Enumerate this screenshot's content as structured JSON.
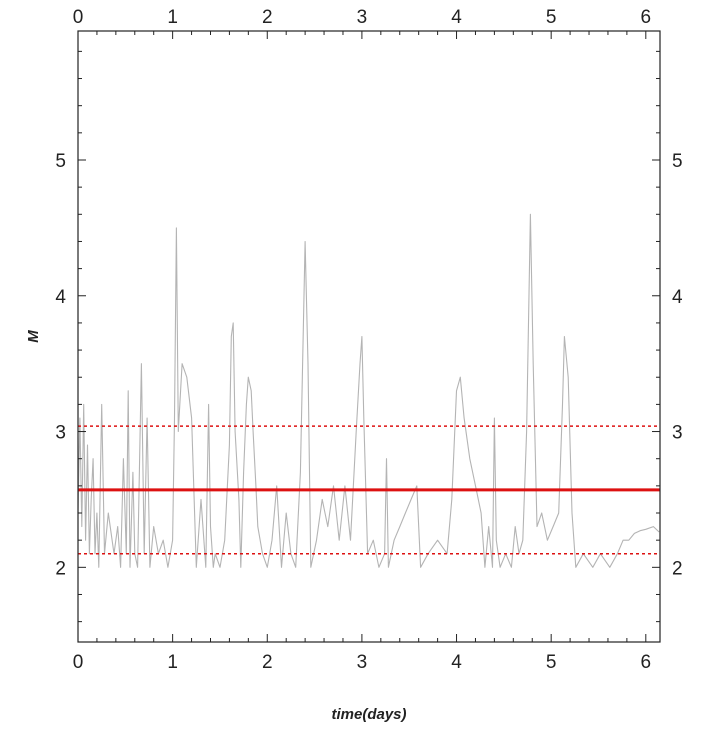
{
  "chart_data": {
    "type": "line",
    "xlabel": "time(days)",
    "ylabel": "M",
    "xlim": [
      0,
      6.15
    ],
    "ylim": [
      1.45,
      5.95
    ],
    "x_ticks": [
      0,
      1,
      2,
      3,
      4,
      5,
      6
    ],
    "y_ticks": [
      2,
      3,
      4,
      5
    ],
    "x_minor_step": 0.2,
    "y_minor_step": 0.2,
    "top_axis_labels": true,
    "right_axis_labels": true,
    "grid": false,
    "legend": "none",
    "reference_lines": [
      {
        "y": 2.57,
        "style": "solid",
        "color": "#dd1111"
      },
      {
        "y": 3.04,
        "style": "dashed",
        "color": "#dd1111"
      },
      {
        "y": 2.1,
        "style": "dashed",
        "color": "#dd1111"
      }
    ],
    "series": [
      {
        "color": "#b4b4b4",
        "points": [
          [
            0.0,
            2.4
          ],
          [
            0.02,
            3.1
          ],
          [
            0.04,
            2.3
          ],
          [
            0.06,
            3.2
          ],
          [
            0.08,
            2.2
          ],
          [
            0.1,
            2.9
          ],
          [
            0.12,
            2.1
          ],
          [
            0.14,
            2.5
          ],
          [
            0.16,
            2.8
          ],
          [
            0.18,
            2.1
          ],
          [
            0.2,
            2.4
          ],
          [
            0.22,
            2.0
          ],
          [
            0.25,
            3.2
          ],
          [
            0.28,
            2.1
          ],
          [
            0.32,
            2.4
          ],
          [
            0.38,
            2.1
          ],
          [
            0.42,
            2.3
          ],
          [
            0.45,
            2.0
          ],
          [
            0.48,
            2.8
          ],
          [
            0.51,
            2.1
          ],
          [
            0.53,
            3.3
          ],
          [
            0.55,
            2.0
          ],
          [
            0.58,
            2.7
          ],
          [
            0.6,
            2.1
          ],
          [
            0.63,
            2.0
          ],
          [
            0.67,
            3.5
          ],
          [
            0.7,
            2.1
          ],
          [
            0.73,
            3.1
          ],
          [
            0.76,
            2.0
          ],
          [
            0.8,
            2.3
          ],
          [
            0.85,
            2.1
          ],
          [
            0.9,
            2.2
          ],
          [
            0.95,
            2.0
          ],
          [
            1.0,
            2.2
          ],
          [
            1.02,
            3.1
          ],
          [
            1.04,
            4.5
          ],
          [
            1.06,
            3.0
          ],
          [
            1.1,
            3.5
          ],
          [
            1.15,
            3.4
          ],
          [
            1.2,
            3.1
          ],
          [
            1.25,
            2.0
          ],
          [
            1.3,
            2.5
          ],
          [
            1.35,
            2.0
          ],
          [
            1.38,
            3.2
          ],
          [
            1.4,
            2.3
          ],
          [
            1.43,
            2.0
          ],
          [
            1.45,
            2.1
          ],
          [
            1.5,
            2.0
          ],
          [
            1.55,
            2.2
          ],
          [
            1.6,
            2.9
          ],
          [
            1.62,
            3.7
          ],
          [
            1.64,
            3.8
          ],
          [
            1.66,
            3.0
          ],
          [
            1.7,
            2.5
          ],
          [
            1.72,
            2.0
          ],
          [
            1.75,
            2.7
          ],
          [
            1.78,
            3.2
          ],
          [
            1.8,
            3.4
          ],
          [
            1.83,
            3.3
          ],
          [
            1.85,
            3.0
          ],
          [
            1.88,
            2.6
          ],
          [
            1.9,
            2.3
          ],
          [
            1.95,
            2.1
          ],
          [
            2.0,
            2.0
          ],
          [
            2.05,
            2.2
          ],
          [
            2.1,
            2.6
          ],
          [
            2.15,
            2.0
          ],
          [
            2.2,
            2.4
          ],
          [
            2.25,
            2.1
          ],
          [
            2.3,
            2.0
          ],
          [
            2.35,
            2.7
          ],
          [
            2.4,
            4.4
          ],
          [
            2.43,
            3.5
          ],
          [
            2.46,
            2.0
          ],
          [
            2.52,
            2.2
          ],
          [
            2.58,
            2.5
          ],
          [
            2.64,
            2.3
          ],
          [
            2.7,
            2.6
          ],
          [
            2.76,
            2.2
          ],
          [
            2.82,
            2.6
          ],
          [
            2.88,
            2.2
          ],
          [
            2.94,
            3.0
          ],
          [
            2.98,
            3.5
          ],
          [
            3.0,
            3.7
          ],
          [
            3.02,
            3.1
          ],
          [
            3.06,
            2.1
          ],
          [
            3.12,
            2.2
          ],
          [
            3.18,
            2.0
          ],
          [
            3.24,
            2.1
          ],
          [
            3.26,
            2.8
          ],
          [
            3.28,
            2.0
          ],
          [
            3.34,
            2.2
          ],
          [
            3.4,
            2.3
          ],
          [
            3.46,
            2.4
          ],
          [
            3.52,
            2.5
          ],
          [
            3.58,
            2.6
          ],
          [
            3.62,
            2.0
          ],
          [
            3.7,
            2.1
          ],
          [
            3.8,
            2.2
          ],
          [
            3.9,
            2.1
          ],
          [
            3.95,
            2.5
          ],
          [
            4.0,
            3.3
          ],
          [
            4.04,
            3.4
          ],
          [
            4.08,
            3.1
          ],
          [
            4.14,
            2.8
          ],
          [
            4.2,
            2.6
          ],
          [
            4.26,
            2.4
          ],
          [
            4.3,
            2.0
          ],
          [
            4.34,
            2.3
          ],
          [
            4.38,
            2.0
          ],
          [
            4.4,
            3.1
          ],
          [
            4.42,
            2.2
          ],
          [
            4.46,
            2.0
          ],
          [
            4.52,
            2.1
          ],
          [
            4.58,
            2.0
          ],
          [
            4.62,
            2.3
          ],
          [
            4.66,
            2.1
          ],
          [
            4.7,
            2.2
          ],
          [
            4.74,
            3.0
          ],
          [
            4.78,
            4.6
          ],
          [
            4.81,
            3.5
          ],
          [
            4.85,
            2.3
          ],
          [
            4.9,
            2.4
          ],
          [
            4.96,
            2.2
          ],
          [
            5.02,
            2.3
          ],
          [
            5.08,
            2.4
          ],
          [
            5.12,
            3.2
          ],
          [
            5.14,
            3.7
          ],
          [
            5.18,
            3.4
          ],
          [
            5.22,
            2.4
          ],
          [
            5.26,
            2.0
          ],
          [
            5.34,
            2.1
          ],
          [
            5.44,
            2.0
          ],
          [
            5.52,
            2.1
          ],
          [
            5.62,
            2.0
          ],
          [
            5.7,
            2.1
          ],
          [
            5.76,
            2.2
          ],
          [
            5.82,
            2.2
          ],
          [
            5.88,
            2.25
          ],
          [
            5.94,
            2.27
          ],
          [
            6.0,
            2.28
          ],
          [
            6.08,
            2.3
          ],
          [
            6.14,
            2.26
          ]
        ]
      }
    ]
  }
}
